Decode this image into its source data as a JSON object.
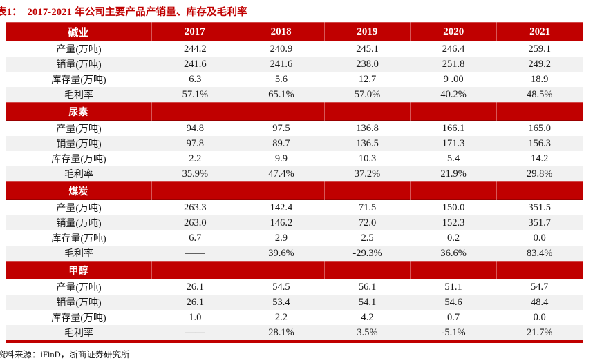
{
  "title": "表1：  2017-2021 年公司主要产品产销量、库存及毛利率",
  "source": "资料来源：iFinD，浙商证券研究所",
  "colors": {
    "accent_red": "#c00000",
    "stripe_gray": "#f1f1f1",
    "header_text": "#ffffff",
    "body_text": "#1a1a1a"
  },
  "table": {
    "years": [
      "2017",
      "2018",
      "2019",
      "2020",
      "2021"
    ],
    "sections": [
      {
        "name": "碱业",
        "rows": [
          {
            "label": "产量(万吨)",
            "values": [
              "244.2",
              "240.9",
              "245.1",
              "246.4",
              "259.1"
            ]
          },
          {
            "label": "销量(万吨)",
            "values": [
              "241.6",
              "241.6",
              "238.0",
              "251.8",
              "249.2"
            ]
          },
          {
            "label": "库存量(万吨)",
            "values": [
              "6.3",
              "5.6",
              "12.7",
              "9 .00",
              "18.9"
            ]
          },
          {
            "label": "毛利率",
            "values": [
              "57.1%",
              "65.1%",
              "57.0%",
              "40.2%",
              "48.5%"
            ]
          }
        ]
      },
      {
        "name": "尿素",
        "rows": [
          {
            "label": "产量(万吨)",
            "values": [
              "94.8",
              "97.5",
              "136.8",
              "166.1",
              "165.0"
            ]
          },
          {
            "label": "销量(万吨)",
            "values": [
              "97.8",
              "89.7",
              "136.5",
              "171.3",
              "156.3"
            ]
          },
          {
            "label": "库存量(万吨)",
            "values": [
              "2.2",
              "9.9",
              "10.3",
              "5.4",
              "14.2"
            ]
          },
          {
            "label": "毛利率",
            "values": [
              "35.9%",
              "47.4%",
              "37.2%",
              "21.9%",
              "29.8%"
            ]
          }
        ]
      },
      {
        "name": "煤炭",
        "rows": [
          {
            "label": "产量(万吨)",
            "values": [
              "263.3",
              "142.4",
              "71.5",
              "150.0",
              "351.5"
            ]
          },
          {
            "label": "销量(万吨)",
            "values": [
              "263.0",
              "146.2",
              "72.0",
              "152.3",
              "351.7"
            ]
          },
          {
            "label": "库存量(万吨)",
            "values": [
              "6.7",
              "2.9",
              "2.5",
              "0.2",
              "0.0"
            ]
          },
          {
            "label": "毛利率",
            "values": [
              "——",
              "39.6%",
              "-29.3%",
              "36.6%",
              "83.4%"
            ]
          }
        ]
      },
      {
        "name": "甲醇",
        "rows": [
          {
            "label": "产量(万吨)",
            "values": [
              "26.1",
              "54.5",
              "56.1",
              "51.1",
              "54.7"
            ]
          },
          {
            "label": "销量(万吨)",
            "values": [
              "26.1",
              "53.4",
              "54.1",
              "54.6",
              "48.4"
            ]
          },
          {
            "label": "库存量(万吨)",
            "values": [
              "1.0",
              "2.2",
              "4.2",
              "0.7",
              "0.0"
            ]
          },
          {
            "label": "毛利率",
            "values": [
              "——",
              "28.1%",
              "3.5%",
              "-5.1%",
              "21.7%"
            ]
          }
        ]
      }
    ]
  }
}
